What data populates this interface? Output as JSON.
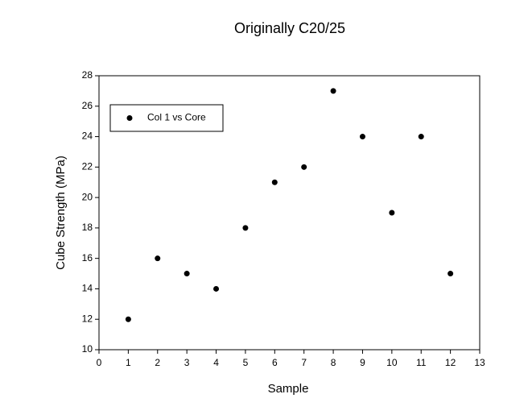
{
  "chart_data": {
    "type": "scatter",
    "title": "Originally C20/25",
    "x_label": "Sample",
    "y_label": "Cube Strength (MPa)",
    "series": [
      {
        "name": "Col 1 vs Core",
        "color": "#000000",
        "x": [
          1,
          2,
          3,
          4,
          5,
          6,
          7,
          8,
          9,
          10,
          11,
          12
        ],
        "values": [
          12,
          16,
          15,
          14,
          18,
          21,
          22,
          27,
          24,
          19,
          24,
          15
        ]
      }
    ],
    "xlim": [
      0,
      13
    ],
    "xticks": [
      0,
      1,
      2,
      3,
      4,
      5,
      6,
      7,
      8,
      9,
      10,
      11,
      12,
      13
    ],
    "ylim": [
      10,
      28
    ],
    "yticks": [
      10,
      12,
      14,
      16,
      18,
      20,
      22,
      24,
      26,
      28
    ],
    "grid": false,
    "legend": "upper left"
  }
}
